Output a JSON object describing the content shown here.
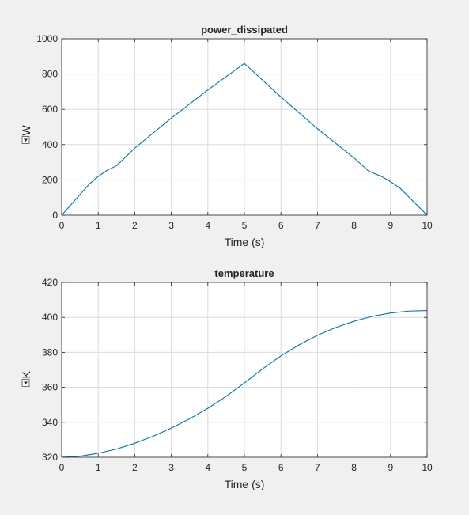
{
  "figure": {
    "background": "#f0f0f0",
    "axes_background": "#ffffff",
    "grid_color": "#dcdcdc",
    "axis_color": "#262626",
    "line_color": "#0072bd"
  },
  "chart_data": [
    {
      "type": "line",
      "title": "power_dissipated",
      "xlabel": "Time (s)",
      "ylabel": "W",
      "ylabel_has_dropdown": true,
      "xlim": [
        0,
        10
      ],
      "ylim": [
        0,
        1000
      ],
      "xticks": [
        0,
        1,
        2,
        3,
        4,
        5,
        6,
        7,
        8,
        9,
        10
      ],
      "yticks": [
        0,
        200,
        400,
        600,
        800,
        1000
      ],
      "grid": true,
      "legend": "none",
      "series": [
        {
          "x": [
            0,
            0.75,
            1.0,
            1.25,
            1.5,
            2,
            3,
            4,
            5,
            6,
            7,
            8,
            8.4,
            8.75,
            9.0,
            9.25,
            10
          ],
          "y": [
            0,
            175,
            220,
            255,
            280,
            380,
            550,
            710,
            860,
            670,
            490,
            325,
            250,
            220,
            190,
            155,
            0
          ]
        }
      ]
    },
    {
      "type": "line",
      "title": "temperature",
      "xlabel": "Time (s)",
      "ylabel": "K",
      "ylabel_has_dropdown": true,
      "xlim": [
        0,
        10
      ],
      "ylim": [
        320,
        420
      ],
      "xticks": [
        0,
        1,
        2,
        3,
        4,
        5,
        6,
        7,
        8,
        9,
        10
      ],
      "yticks": [
        320,
        340,
        360,
        380,
        400,
        420
      ],
      "grid": true,
      "legend": "none",
      "series": [
        {
          "x": [
            0,
            0.5,
            1,
            1.5,
            2,
            2.5,
            3,
            3.5,
            4,
            4.5,
            5,
            5.5,
            6,
            6.5,
            7,
            7.5,
            8,
            8.5,
            9,
            9.5,
            10
          ],
          "y": [
            320,
            320.6,
            322.3,
            324.7,
            328,
            332,
            336.7,
            342,
            348,
            354.8,
            362.5,
            370.6,
            378,
            384.3,
            389.8,
            394.2,
            397.8,
            400.6,
            402.5,
            403.6,
            403.9
          ]
        }
      ]
    }
  ]
}
